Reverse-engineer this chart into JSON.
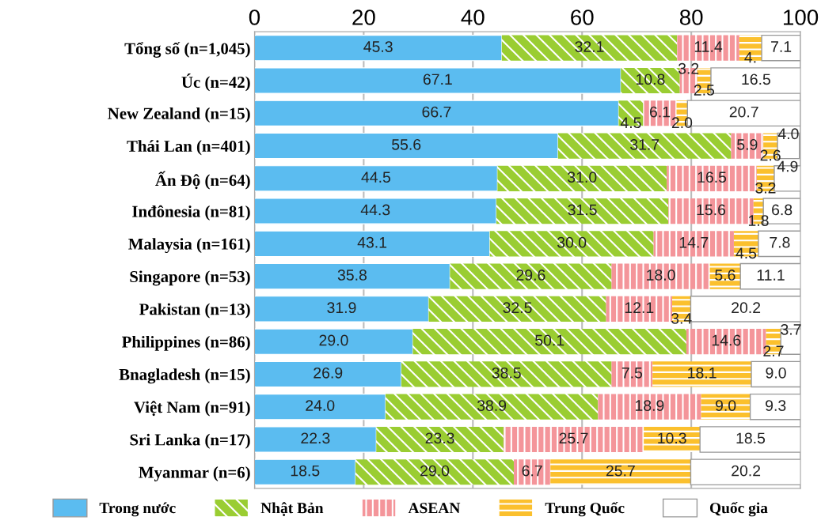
{
  "chart_data": {
    "type": "bar",
    "orientation": "horizontal",
    "stacked": true,
    "data_labels": true,
    "grid": "x",
    "legend": "bottom",
    "xlim": [
      0,
      100
    ],
    "xticks": [
      0,
      20,
      40,
      60,
      80,
      100
    ],
    "categories": [
      "Tổng số (n=1,045)",
      "Úc (n=42)",
      "New Zealand (n=15)",
      "Thái Lan (n=401)",
      "Ấn Độ (n=64)",
      "Inđônesia (n=81)",
      "Malaysia (n=161)",
      "Singapore (n=53)",
      "Pakistan (n=13)",
      "Philippines (n=86)",
      "Bnagladesh (n=15)",
      "Việt Nam (n=91)",
      "Sri Lanka (n=17)",
      "Myanmar (n=6)"
    ],
    "series": [
      {
        "name": "Trong nước",
        "color": "#5bbcf0",
        "values": [
          45.3,
          67.1,
          66.7,
          55.6,
          44.5,
          44.3,
          43.1,
          35.8,
          31.9,
          29.0,
          26.9,
          24.0,
          22.3,
          18.5
        ],
        "value_labels": [
          "45.3",
          "67.1",
          "66.7",
          "55.6",
          "44.5",
          "44.3",
          "43.1",
          "35.8",
          "31.9",
          "29.0",
          "26.9",
          "24.0",
          "22.3",
          "18.5"
        ]
      },
      {
        "name": "Nhật Bản",
        "color": "#9acd32",
        "values": [
          32.1,
          10.8,
          4.5,
          31.7,
          31.0,
          31.5,
          30.0,
          29.6,
          32.5,
          50.1,
          38.5,
          38.9,
          23.3,
          29.0
        ],
        "value_labels": [
          "32.1",
          "10.8",
          "4.5",
          "31.7",
          "31.0",
          "31.5",
          "30.0",
          "29.6",
          "32.5",
          "50.1",
          "38.5",
          "38.9",
          "23.3",
          "29.0"
        ]
      },
      {
        "name": "ASEAN",
        "color": "#f4959a",
        "values": [
          11.4,
          3.2,
          6.1,
          5.9,
          16.5,
          15.6,
          14.7,
          18.0,
          12.1,
          14.6,
          7.5,
          18.9,
          25.7,
          6.7
        ],
        "value_labels": [
          "11.4",
          "3.2",
          "6.1",
          "5.9",
          "16.5",
          "15.6",
          "14.7",
          "18.0",
          "12.1",
          "14.6",
          "7.5",
          "18.9",
          "25.7",
          "6.7"
        ]
      },
      {
        "name": "Trung Quốc",
        "color": "#fbc02d",
        "values": [
          4.1,
          2.5,
          2.0,
          2.6,
          3.2,
          1.8,
          4.5,
          5.6,
          3.4,
          2.7,
          18.1,
          9.0,
          10.3,
          25.7
        ],
        "value_labels": [
          "4.",
          "2.5",
          "2.0",
          "2.6",
          "3.2",
          "1.8",
          "4.5",
          "5.6",
          "3.4",
          "2.7",
          "18.1",
          "9.0",
          "10.3",
          "25.7"
        ]
      },
      {
        "name": "Quốc gia",
        "color": "#ffffff",
        "values": [
          7.1,
          16.5,
          20.7,
          4.0,
          4.9,
          6.8,
          7.8,
          11.1,
          20.2,
          3.7,
          9.0,
          9.3,
          18.5,
          20.2
        ],
        "value_labels": [
          "7.1",
          "16.5",
          "20.7",
          "4.0",
          "4.9",
          "6.8",
          "7.8",
          "11.1",
          "20.2",
          "3.7",
          "9.0",
          "9.3",
          "18.5",
          "20.2"
        ]
      }
    ]
  }
}
